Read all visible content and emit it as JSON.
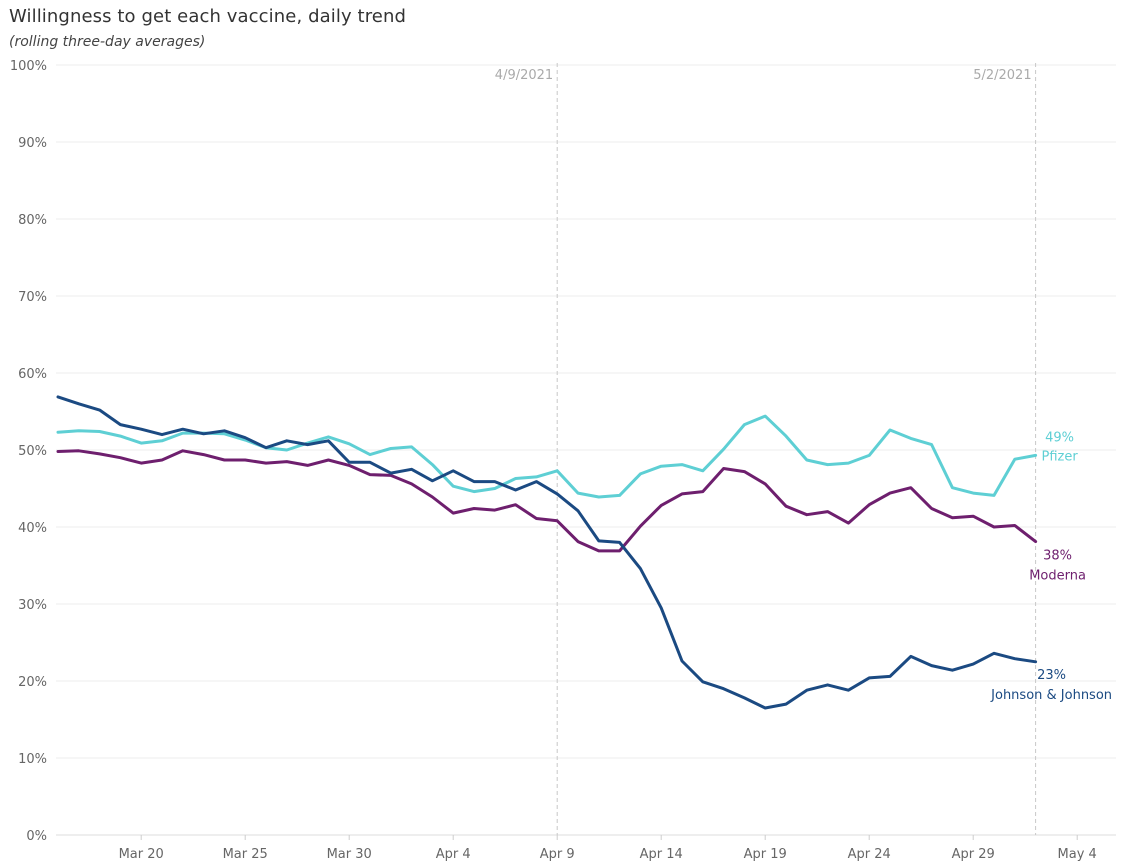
{
  "title": "Willingness to get each vaccine, daily  trend",
  "subtitle": "(rolling three-day averages)",
  "chart_data": {
    "type": "line",
    "title": "Willingness to get each vaccine, daily  trend",
    "subtitle": "(rolling three-day averages)",
    "xlabel": "",
    "ylabel": "",
    "ylim": [
      0,
      100
    ],
    "yticks": [
      "0%",
      "10%",
      "20%",
      "30%",
      "40%",
      "50%",
      "60%",
      "70%",
      "80%",
      "90%",
      "100%"
    ],
    "xticks": [
      "Mar 20",
      "Mar 25",
      "Mar 30",
      "Apr 4",
      "Apr 9",
      "Apr 14",
      "Apr 19",
      "Apr 24",
      "Apr 29",
      "May 4"
    ],
    "x": [
      "2021-03-16",
      "2021-03-17",
      "2021-03-18",
      "2021-03-19",
      "2021-03-20",
      "2021-03-21",
      "2021-03-22",
      "2021-03-23",
      "2021-03-24",
      "2021-03-25",
      "2021-03-26",
      "2021-03-27",
      "2021-03-28",
      "2021-03-29",
      "2021-03-30",
      "2021-03-31",
      "2021-04-01",
      "2021-04-02",
      "2021-04-03",
      "2021-04-04",
      "2021-04-05",
      "2021-04-06",
      "2021-04-07",
      "2021-04-08",
      "2021-04-09",
      "2021-04-10",
      "2021-04-11",
      "2021-04-12",
      "2021-04-13",
      "2021-04-14",
      "2021-04-15",
      "2021-04-16",
      "2021-04-17",
      "2021-04-18",
      "2021-04-19",
      "2021-04-20",
      "2021-04-21",
      "2021-04-22",
      "2021-04-23",
      "2021-04-24",
      "2021-04-25",
      "2021-04-26",
      "2021-04-27",
      "2021-04-28",
      "2021-04-29",
      "2021-04-30",
      "2021-05-01",
      "2021-05-02"
    ],
    "reference_lines": [
      {
        "label": "4/9/2021",
        "x": "2021-04-09"
      },
      {
        "label": "5/2/2021",
        "x": "2021-05-02"
      }
    ],
    "series": [
      {
        "name": "Pfizer",
        "color": "#5ecfd4",
        "end_label": "49%",
        "values": [
          52.3,
          52.5,
          52.4,
          51.8,
          50.9,
          51.2,
          52.2,
          52.2,
          52.1,
          51.3,
          50.3,
          50.0,
          50.9,
          51.7,
          50.8,
          49.4,
          50.2,
          50.4,
          48.1,
          45.3,
          44.6,
          45.0,
          46.3,
          46.5,
          47.3,
          44.4,
          43.9,
          44.1,
          46.9,
          47.9,
          48.1,
          47.3,
          50.1,
          53.3,
          54.4,
          51.8,
          48.7,
          48.1,
          48.3,
          49.3,
          52.6,
          51.5,
          50.7,
          45.1,
          44.4,
          44.1,
          48.8,
          49.3
        ]
      },
      {
        "name": "Moderna",
        "color": "#6e1f6e",
        "end_label": "38%",
        "values": [
          49.8,
          49.9,
          49.5,
          49.0,
          48.3,
          48.7,
          49.9,
          49.4,
          48.7,
          48.7,
          48.3,
          48.5,
          48.0,
          48.7,
          48.0,
          46.8,
          46.7,
          45.6,
          43.9,
          41.8,
          42.4,
          42.2,
          42.9,
          41.1,
          40.8,
          38.1,
          36.9,
          36.9,
          40.1,
          42.8,
          44.3,
          44.6,
          47.6,
          47.2,
          45.6,
          42.7,
          41.6,
          42.0,
          40.5,
          42.9,
          44.4,
          45.1,
          42.4,
          41.2,
          41.4,
          40.0,
          40.2,
          38.1
        ]
      },
      {
        "name": "Johnson & Johnson",
        "color": "#1b4a82",
        "end_label": "23%",
        "values": [
          56.9,
          56.0,
          55.2,
          53.3,
          52.7,
          52.0,
          52.7,
          52.1,
          52.5,
          51.6,
          50.3,
          51.2,
          50.7,
          51.2,
          48.4,
          48.4,
          47.0,
          47.5,
          46.0,
          47.3,
          45.9,
          45.9,
          44.8,
          45.9,
          44.3,
          42.1,
          38.2,
          38.0,
          34.6,
          29.5,
          22.6,
          19.9,
          19.0,
          17.8,
          16.5,
          17.0,
          18.8,
          19.5,
          18.8,
          20.4,
          20.6,
          23.2,
          22.0,
          21.4,
          22.2,
          23.6,
          22.9,
          22.5
        ]
      }
    ]
  }
}
